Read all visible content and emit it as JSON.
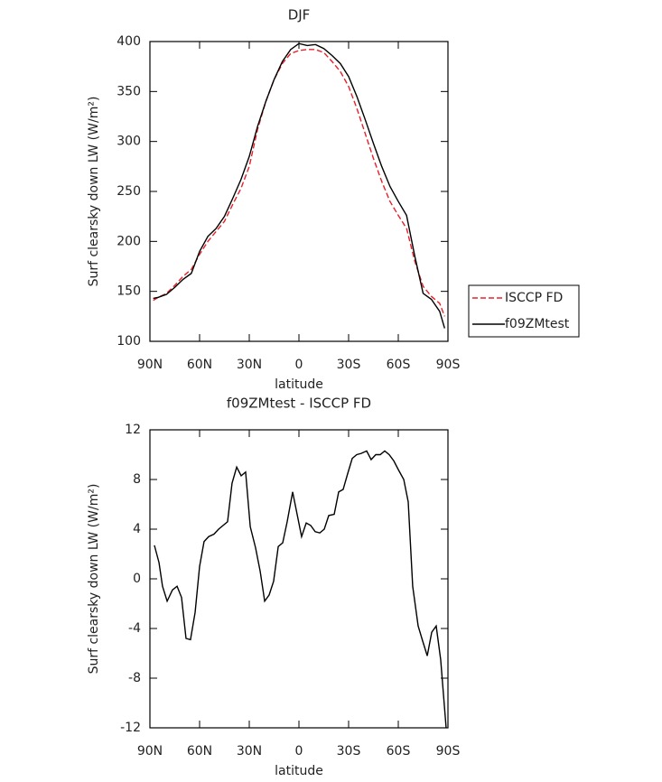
{
  "chart_data": [
    {
      "type": "line",
      "title": "DJF",
      "xlabel": "latitude",
      "ylabel": "Surf clearsky down LW (W/m²)",
      "xlim": [
        90,
        -90
      ],
      "ylim": [
        100,
        400
      ],
      "xticks": [
        {
          "value": 90,
          "label": "90N"
        },
        {
          "value": 60,
          "label": "60N"
        },
        {
          "value": 30,
          "label": "30N"
        },
        0,
        {
          "value": -30,
          "label": "30S"
        },
        {
          "value": -60,
          "label": "60S"
        },
        {
          "value": -90,
          "label": "90S"
        }
      ],
      "yticks": [
        100,
        150,
        200,
        250,
        300,
        350,
        400
      ],
      "legend": "right",
      "x": [
        88,
        85,
        80,
        75,
        70,
        65,
        60,
        55,
        50,
        45,
        40,
        35,
        30,
        25,
        20,
        15,
        10,
        5,
        0,
        -5,
        -10,
        -15,
        -20,
        -25,
        -30,
        -35,
        -40,
        -45,
        -50,
        -55,
        -60,
        -65,
        -70,
        -75,
        -80,
        -85,
        -88
      ],
      "series": [
        {
          "name": "ISCCP FD",
          "color": "#e8202a",
          "dash": true,
          "values": [
            141,
            144,
            148,
            156,
            165,
            172,
            187,
            200,
            210,
            220,
            237,
            253,
            275,
            312,
            340,
            362,
            378,
            388,
            391,
            392,
            392,
            389,
            380,
            370,
            355,
            333,
            308,
            283,
            260,
            240,
            226,
            213,
            180,
            155,
            145,
            138,
            125
          ]
        },
        {
          "name": "f09ZMtest",
          "color": "#000000",
          "dash": false,
          "values": [
            143,
            144,
            147,
            154,
            162,
            168,
            190,
            205,
            213,
            225,
            243,
            262,
            285,
            315,
            340,
            362,
            380,
            392,
            398,
            396,
            397,
            393,
            386,
            378,
            365,
            345,
            322,
            298,
            275,
            255,
            240,
            226,
            185,
            148,
            142,
            130,
            113
          ]
        }
      ]
    },
    {
      "type": "line",
      "title": "f09ZMtest - ISCCP FD",
      "xlabel": "latitude",
      "ylabel": "Surf clearsky down LW (W/m²)",
      "xlim": [
        90,
        -90
      ],
      "ylim": [
        -12,
        12
      ],
      "xticks": [
        {
          "value": 90,
          "label": "90N"
        },
        {
          "value": 60,
          "label": "60N"
        },
        {
          "value": 30,
          "label": "30N"
        },
        0,
        {
          "value": -30,
          "label": "30S"
        },
        {
          "value": -60,
          "label": "60S"
        },
        {
          "value": -90,
          "label": "90S"
        }
      ],
      "yticks": [
        -12,
        -8,
        -4,
        0,
        4,
        8,
        12
      ],
      "x": [
        87.3,
        84.5,
        82.4,
        79.6,
        76.4,
        73.6,
        70.9,
        68.2,
        65.5,
        62.7,
        60,
        57.3,
        54.5,
        51.3,
        48.5,
        45.8,
        43.1,
        40.4,
        37.6,
        34.9,
        32.2,
        29.4,
        26.2,
        23.4,
        20.7,
        18,
        15.3,
        12.5,
        9.8,
        7.1,
        3.8,
        1.1,
        -1.6,
        -4.4,
        -7.1,
        -9.8,
        -12.6,
        -15.3,
        -18,
        -21.3,
        -24,
        -26.7,
        -29.5,
        -32.2,
        -34.9,
        -37.6,
        -40.9,
        -43.6,
        -46.4,
        -49.1,
        -51.8,
        -54.5,
        -57.3,
        -60,
        -63.3,
        -66,
        -68.7,
        -72,
        -74.7,
        -77.5,
        -80.2,
        -82.9,
        -85.6,
        -88.9
      ],
      "series": [
        {
          "color": "#000000",
          "values": [
            2.7,
            1.3,
            -0.6,
            -1.8,
            -0.9,
            -0.6,
            -1.5,
            -4.8,
            -4.9,
            -2.7,
            1.0,
            3.0,
            3.4,
            3.6,
            4.0,
            4.3,
            4.6,
            7.7,
            9.0,
            8.3,
            8.6,
            4.2,
            2.5,
            0.6,
            -1.8,
            -1.3,
            -0.2,
            2.6,
            2.9,
            4.6,
            7.0,
            5.2,
            3.4,
            4.5,
            4.3,
            3.8,
            3.7,
            4.0,
            5.1,
            5.2,
            7.0,
            7.2,
            8.5,
            9.7,
            10.0,
            10.1,
            10.3,
            9.6,
            10.0,
            10.0,
            10.3,
            10.0,
            9.5,
            8.8,
            8.0,
            6.2,
            -0.6,
            -3.8,
            -5.0,
            -6.2,
            -4.3,
            -3.8,
            -6.5,
            -12.0
          ]
        }
      ]
    }
  ]
}
